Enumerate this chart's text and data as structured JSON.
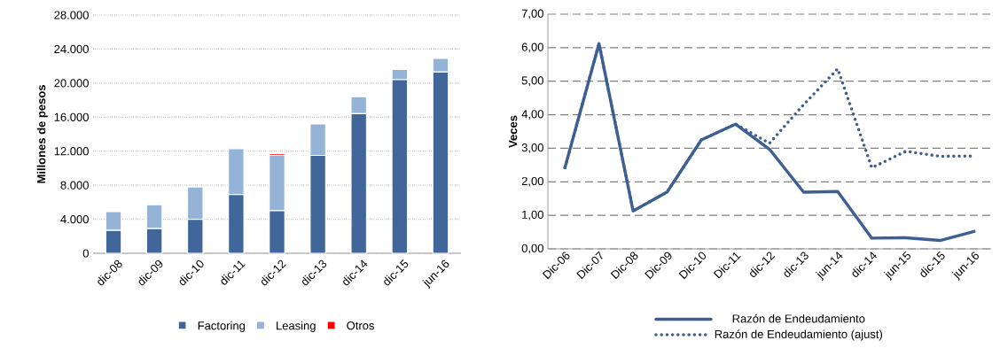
{
  "chart_data": [
    {
      "type": "bar",
      "stacked": true,
      "ylabel": "Millones de pesos",
      "categories": [
        "dic-08",
        "dic-09",
        "dic-10",
        "dic-11",
        "dic-12",
        "dic-13",
        "dic-14",
        "dic-15",
        "jun-16"
      ],
      "series": [
        {
          "name": "Factoring",
          "color": "#41679a",
          "values": [
            2700,
            2900,
            4000,
            6900,
            5000,
            11500,
            16400,
            20400,
            21300
          ]
        },
        {
          "name": "Leasing",
          "color": "#95b3d7",
          "values": [
            2200,
            2800,
            3800,
            5400,
            6500,
            3700,
            2000,
            1200,
            1600
          ]
        },
        {
          "name": "Otros",
          "color": "#ff0000",
          "values": [
            null,
            null,
            null,
            null,
            200,
            null,
            null,
            null,
            null
          ]
        }
      ],
      "ylim": [
        0,
        28000
      ],
      "yticks": [
        0,
        {
          "value": 4000,
          "label": "4.000"
        },
        {
          "value": 8000,
          "label": "8.000"
        },
        {
          "value": 12000,
          "label": "12.000"
        },
        {
          "value": 16000,
          "label": "16.000"
        },
        {
          "value": 20000,
          "label": "20.000"
        },
        {
          "value": 24000,
          "label": "24.000"
        },
        {
          "value": 28000,
          "label": "28.000"
        }
      ],
      "grid": "y",
      "legend": "bottom"
    },
    {
      "type": "line",
      "ylabel": "Veces",
      "categories": [
        "Dic-06",
        "Dic-07",
        "Dic-08",
        "Dic-09",
        "Dic-10",
        "Dic-11",
        "dic-12",
        "dic-13",
        "jun-14",
        "dic-14",
        "jun-15",
        "dic-15",
        "jun-16"
      ],
      "series": [
        {
          "name": "Razón de Endeudamiento",
          "color": "#3d5f91",
          "line_style": "solid",
          "values": [
            2.42,
            6.12,
            1.13,
            1.7,
            3.25,
            3.72,
            2.97,
            1.69,
            1.71,
            0.32,
            0.33,
            0.25,
            0.52
          ]
        },
        {
          "name": "Razón de Endeudamiento (ajust)",
          "color": "#3d5f91",
          "line_style": "dotted",
          "values": [
            2.42,
            6.12,
            1.13,
            1.7,
            3.25,
            3.72,
            3.15,
            4.3,
            5.37,
            2.42,
            2.91,
            2.76,
            2.77
          ]
        }
      ],
      "ylim": [
        0,
        7
      ],
      "yticks": [
        {
          "value": 0,
          "label": "0,00"
        },
        {
          "value": 1,
          "label": "1,00"
        },
        {
          "value": 2,
          "label": "2,00"
        },
        {
          "value": 3,
          "label": "3,00"
        },
        {
          "value": 4,
          "label": "4,00"
        },
        {
          "value": 5,
          "label": "5,00"
        },
        {
          "value": 6,
          "label": "6,00"
        },
        {
          "value": 7,
          "label": "7,00"
        }
      ],
      "grid": "y",
      "legend": "bottom",
      "marker": "none"
    }
  ]
}
